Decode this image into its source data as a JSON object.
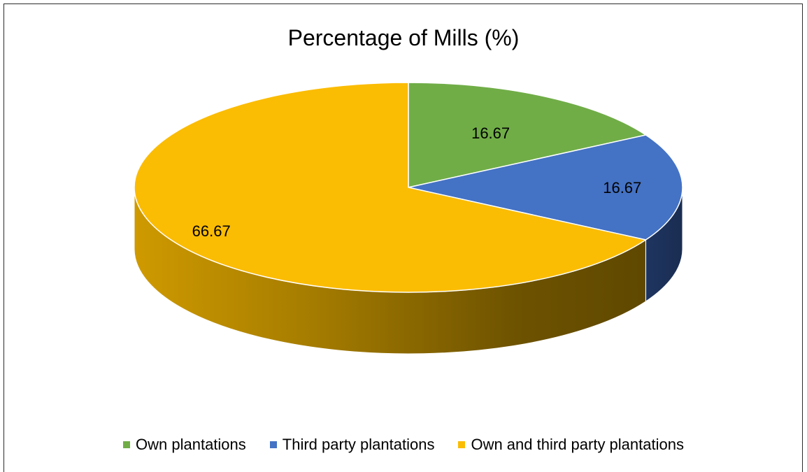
{
  "chart_data": {
    "type": "pie",
    "title": "Percentage of Mills (%)",
    "categories": [
      "Own plantations",
      "Third party plantations",
      "Own and third party plantations"
    ],
    "values": [
      16.67,
      16.67,
      66.67
    ],
    "data_labels": [
      "16.67",
      "16.67",
      "66.67"
    ],
    "colors": [
      "#70ad47",
      "#4472c4",
      "#fbbc04"
    ],
    "style": "3d",
    "legend_position": "bottom"
  }
}
